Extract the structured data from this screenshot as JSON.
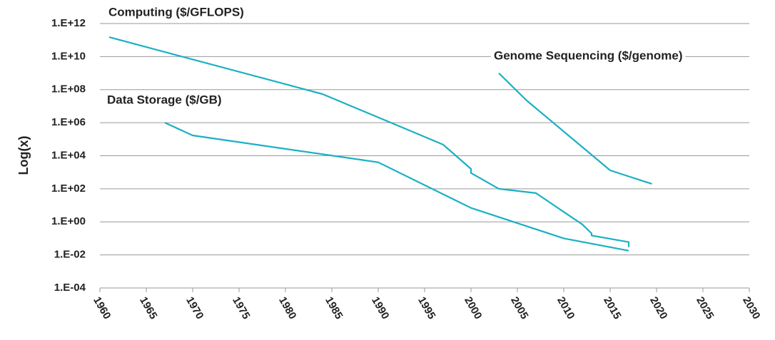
{
  "chart_data": {
    "type": "line",
    "y_label": "Log(x)",
    "log_y": true,
    "grid": true,
    "xlim": [
      1960,
      2030
    ],
    "xticks": [
      1960,
      1965,
      1970,
      1975,
      1980,
      1985,
      1990,
      1995,
      2000,
      2005,
      2010,
      2015,
      2020,
      2025,
      2030
    ],
    "ylim": [
      0.0001,
      1000000000000
    ],
    "yticks": [
      {
        "value": 0.0001,
        "label": "1.E-04"
      },
      {
        "value": 0.01,
        "label": "1.E-02"
      },
      {
        "value": 1,
        "label": "1.E+00"
      },
      {
        "value": 100,
        "label": "1.E+02"
      },
      {
        "value": 10000,
        "label": "1.E+04"
      },
      {
        "value": 1000000,
        "label": "1.E+06"
      },
      {
        "value": 100000000,
        "label": "1.E+08"
      },
      {
        "value": 10000000000,
        "label": "1.E+10"
      },
      {
        "value": 1000000000000,
        "label": "1.E+12"
      }
    ],
    "series": [
      {
        "name": "Computing ($/GFLOPS)",
        "color": "#1ab0c4",
        "x": [
          1961,
          1984,
          1997,
          2000,
          2000,
          2003,
          2007,
          2010,
          2012,
          2013,
          2013,
          2017,
          2017
        ],
        "values": [
          150000000000,
          54000000,
          47000,
          1600,
          900,
          100,
          55,
          4,
          0.7,
          0.2,
          0.15,
          0.06,
          0.03
        ]
      },
      {
        "name": "Data Storage ($/GB)",
        "color": "#1ab0c4",
        "x": [
          1967,
          1970,
          1990,
          2000,
          2010,
          2017
        ],
        "values": [
          1000000,
          170000,
          4000,
          7,
          0.1,
          0.018
        ]
      },
      {
        "name": "Genome Sequencing ($/genome)",
        "color": "#1ab0c4",
        "x": [
          2003,
          2006,
          2015,
          2018.5,
          2019.5
        ],
        "values": [
          1000000000,
          22000000,
          1300,
          300,
          200
        ]
      }
    ]
  }
}
